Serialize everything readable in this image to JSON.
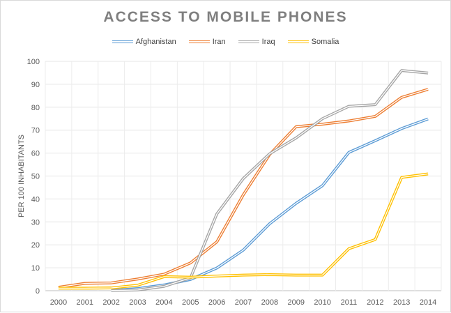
{
  "chart_data": {
    "type": "line",
    "title": "ACCESS TO MOBILE PHONES",
    "xlabel": "",
    "ylabel": "PER 100 INHABITANTS",
    "ylim": [
      0,
      100
    ],
    "yticks": [
      0,
      10,
      20,
      30,
      40,
      50,
      60,
      70,
      80,
      90,
      100
    ],
    "grid": true,
    "legend_position": "top",
    "categories": [
      "2000",
      "2001",
      "2002",
      "2003",
      "2004",
      "2005",
      "2006",
      "2007",
      "2008",
      "2009",
      "2010",
      "2011",
      "2012",
      "2013",
      "2014"
    ],
    "series": [
      {
        "name": "Afghanistan",
        "color": "#5b9bd5",
        "values": [
          null,
          null,
          0.1,
          0.9,
          2.5,
          4.9,
          9.9,
          17.7,
          29.2,
          38.1,
          45.8,
          60.3,
          65.4,
          70.7,
          74.9
        ]
      },
      {
        "name": "Iran",
        "color": "#ed7d31",
        "values": [
          1.5,
          3.2,
          3.4,
          5.1,
          7.2,
          12.1,
          21.3,
          41.8,
          59.4,
          71.5,
          72.6,
          74.0,
          76.0,
          84.3,
          87.8
        ]
      },
      {
        "name": "Iraq",
        "color": "#a5a5a5",
        "values": [
          null,
          null,
          0.1,
          0.3,
          1.9,
          5.6,
          33.5,
          48.9,
          59.7,
          66.6,
          75.0,
          80.4,
          81.1,
          96.0,
          94.9
        ]
      },
      {
        "name": "Somalia",
        "color": "#ffc000",
        "values": [
          1.1,
          1.1,
          1.2,
          2.4,
          6.1,
          5.9,
          6.4,
          6.8,
          7.0,
          6.8,
          6.8,
          18.3,
          22.3,
          49.4,
          50.9
        ]
      }
    ]
  }
}
